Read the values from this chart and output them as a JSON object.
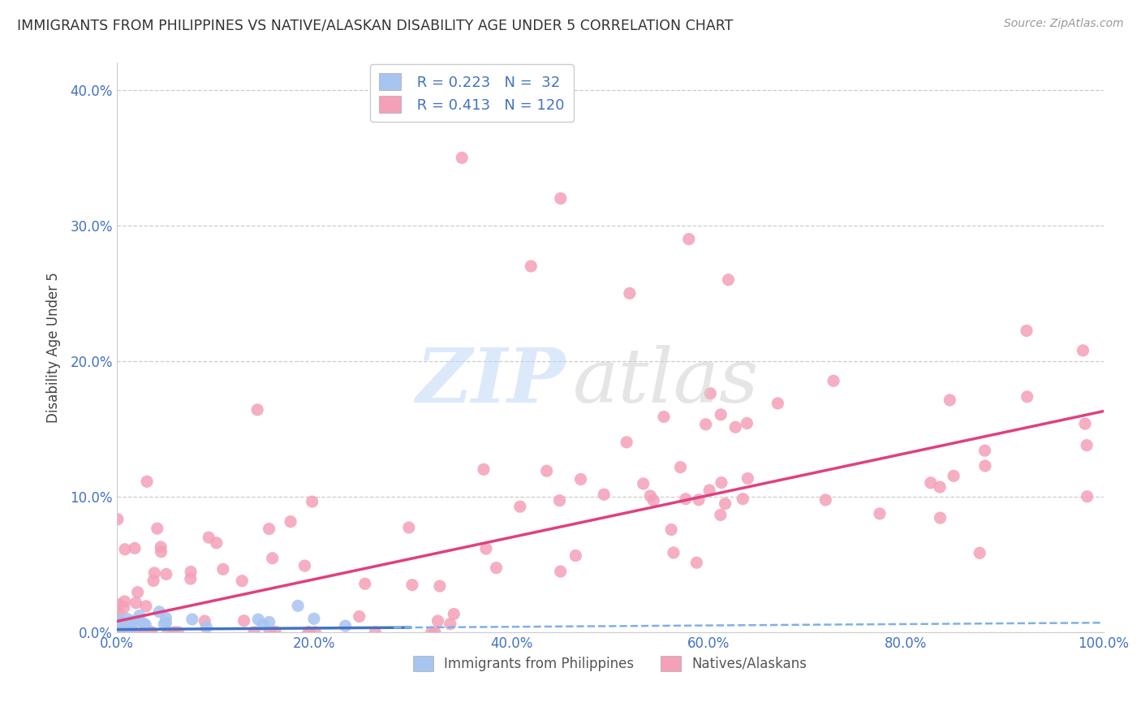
{
  "title": "IMMIGRANTS FROM PHILIPPINES VS NATIVE/ALASKAN DISABILITY AGE UNDER 5 CORRELATION CHART",
  "source": "Source: ZipAtlas.com",
  "ylabel": "Disability Age Under 5",
  "watermark_zip": "ZIP",
  "watermark_atlas": "atlas",
  "legend_labels": [
    "Immigrants from Philippines",
    "Natives/Alaskans"
  ],
  "series1": {
    "label": "Immigrants from Philippines",
    "R": 0.223,
    "N": 32,
    "dot_color": "#a8c4f0",
    "line_color": "#4472c4",
    "line_style": "-"
  },
  "series2": {
    "label": "Natives/Alaskans",
    "R": 0.413,
    "N": 120,
    "dot_color": "#f4a0b8",
    "line_color": "#e04080",
    "line_style": "-"
  },
  "xlim": [
    0.0,
    1.0
  ],
  "ylim": [
    0.0,
    0.42
  ],
  "yticks": [
    0.0,
    0.1,
    0.2,
    0.3,
    0.4
  ],
  "ytick_labels": [
    "0.0%",
    "10.0%",
    "20.0%",
    "30.0%",
    "40.0%"
  ],
  "xticks": [
    0.0,
    0.2,
    0.4,
    0.6,
    0.8,
    1.0
  ],
  "xtick_labels": [
    "0.0%",
    "20.0%",
    "40.0%",
    "60.0%",
    "80.0%",
    "100.0%"
  ],
  "grid_color": "#cccccc",
  "background_color": "#ffffff",
  "title_color": "#333333",
  "tick_color": "#4472c4"
}
